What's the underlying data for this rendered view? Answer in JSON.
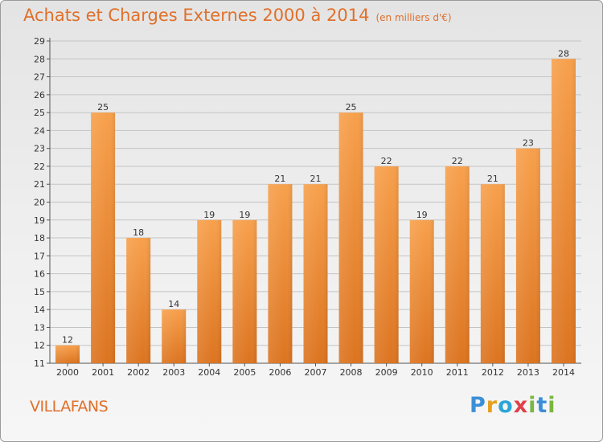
{
  "title": "Achats et Charges Externes 2000 à 2014",
  "unit_note": "(en milliers d'€)",
  "place": "VILLAFANS",
  "logo": {
    "letters": [
      "P",
      "r",
      "o",
      "x",
      "i",
      "t",
      "i"
    ],
    "colors": [
      "#3b8fd6",
      "#e6a020",
      "#2aa6d8",
      "#e0404a",
      "#7ab640",
      "#3b8fd6",
      "#7ab640"
    ]
  },
  "colors": {
    "bar_top": "#f7a04c",
    "bar_bottom": "#dc7420",
    "accent": "#e0702a"
  },
  "chart_data": {
    "type": "bar",
    "categories": [
      "2000",
      "2001",
      "2002",
      "2003",
      "2004",
      "2005",
      "2006",
      "2007",
      "2008",
      "2009",
      "2010",
      "2011",
      "2012",
      "2013",
      "2014"
    ],
    "values": [
      12,
      25,
      18,
      14,
      19,
      19,
      21,
      21,
      25,
      22,
      19,
      22,
      21,
      23,
      28
    ],
    "ylim": [
      11,
      29
    ],
    "yticks": [
      11,
      12,
      13,
      14,
      15,
      16,
      17,
      18,
      19,
      20,
      21,
      22,
      23,
      24,
      25,
      26,
      27,
      28,
      29
    ],
    "grid": true,
    "data_labels": true
  }
}
